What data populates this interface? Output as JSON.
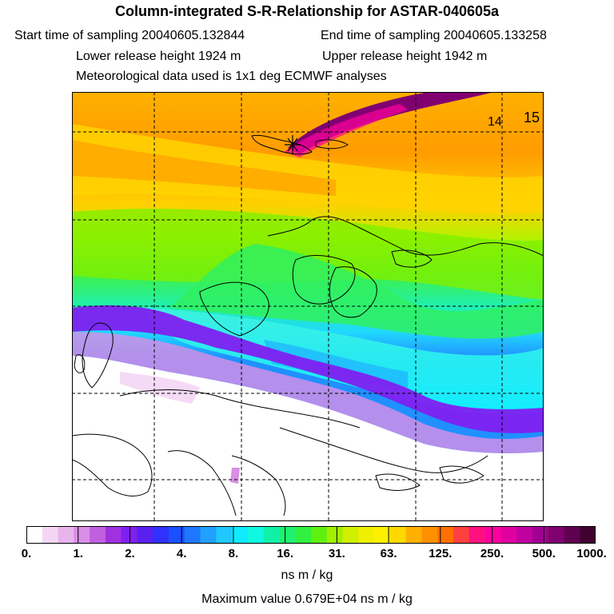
{
  "header": {
    "title": "Column-integrated S-R-Relationship for ASTAR-040605a",
    "start_time": "Start time of sampling 20040605.132844",
    "end_time": "End time of sampling 20040605.133258",
    "lower_release": "Lower release height 1924 m",
    "upper_release": "Upper release height 1942 m",
    "met_data": "Meteorological data used is 1x1 deg ECMWF analyses"
  },
  "map": {
    "track_label_1": "14",
    "track_label_2": "15"
  },
  "colorbar": {
    "tick_labels": [
      "0.",
      "1.",
      "2.",
      "4.",
      "8.",
      "16.",
      "31.",
      "63.",
      "125.",
      "250.",
      "500.",
      "1000."
    ],
    "colors": [
      "#ffffff",
      "#f4d6f4",
      "#e8b4ec",
      "#d98ee6",
      "#c060e0",
      "#a030e0",
      "#8020f0",
      "#5a20f0",
      "#3030ff",
      "#1a50ff",
      "#1e78ff",
      "#20a0ff",
      "#20c8ff",
      "#10eaff",
      "#10f8e0",
      "#10f0a8",
      "#20f070",
      "#30f040",
      "#60f010",
      "#a0f000",
      "#d0f000",
      "#eef000",
      "#fff000",
      "#ffd800",
      "#ffb000",
      "#ff9000",
      "#ff7000",
      "#ff4040",
      "#ff1080",
      "#ff00a0",
      "#e000a0",
      "#c000a0",
      "#a00090",
      "#800070",
      "#600050",
      "#400030"
    ],
    "units": "ns m / kg",
    "max_value": "Maximum value  0.679E+04 ns m / kg"
  }
}
